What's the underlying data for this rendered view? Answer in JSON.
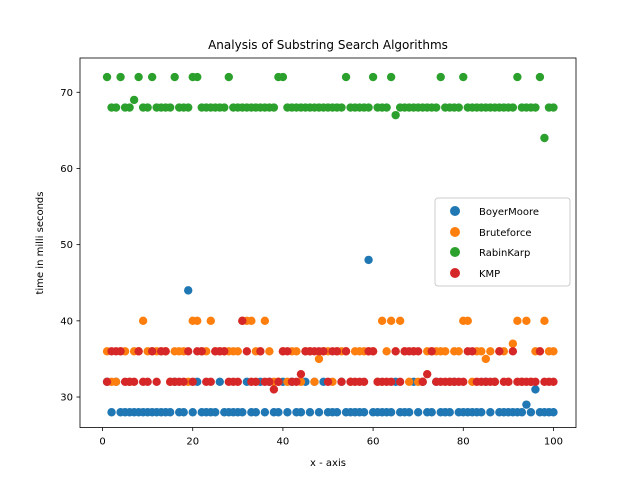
{
  "chart_data": {
    "type": "scatter",
    "title": "Analysis of Substring Search Algorithms",
    "xlabel": "x - axis",
    "ylabel": "time in milli seconds",
    "xlim": [
      -5,
      105
    ],
    "ylim": [
      26,
      74.5
    ],
    "xticks": [
      0,
      20,
      40,
      60,
      80,
      100
    ],
    "yticks": [
      30,
      40,
      50,
      60,
      70
    ],
    "grid": false,
    "legend_position": "center-right",
    "series": [
      {
        "name": "BoyerMoore",
        "color": "#1f77b4",
        "x": [
          1,
          2,
          3,
          4,
          5,
          6,
          7,
          8,
          9,
          10,
          11,
          12,
          13,
          14,
          15,
          16,
          17,
          18,
          19,
          20,
          21,
          22,
          23,
          24,
          25,
          26,
          27,
          28,
          29,
          30,
          31,
          32,
          33,
          34,
          35,
          36,
          37,
          38,
          39,
          40,
          41,
          42,
          43,
          44,
          45,
          46,
          47,
          48,
          49,
          50,
          51,
          52,
          53,
          54,
          55,
          56,
          57,
          58,
          59,
          60,
          61,
          62,
          63,
          64,
          65,
          66,
          67,
          68,
          69,
          70,
          71,
          72,
          73,
          74,
          75,
          76,
          77,
          78,
          79,
          80,
          81,
          82,
          83,
          84,
          85,
          86,
          87,
          88,
          89,
          90,
          91,
          92,
          93,
          94,
          95,
          96,
          97,
          98,
          99,
          100
        ],
        "y": [
          32,
          28,
          32,
          28,
          28,
          28,
          28,
          28,
          28,
          28,
          28,
          28,
          28,
          28,
          28,
          32,
          28,
          28,
          44,
          28,
          32,
          28,
          28,
          28,
          28,
          32,
          28,
          28,
          28,
          28,
          28,
          32,
          28,
          28,
          32,
          28,
          32,
          28,
          28,
          32,
          28,
          32,
          28,
          28,
          32,
          28,
          32,
          28,
          32,
          28,
          28,
          28,
          32,
          28,
          28,
          28,
          28,
          28,
          48,
          28,
          28,
          28,
          28,
          28,
          32,
          28,
          28,
          28,
          32,
          28,
          32,
          28,
          28,
          32,
          28,
          28,
          28,
          32,
          28,
          28,
          28,
          28,
          28,
          28,
          32,
          28,
          32,
          28,
          28,
          28,
          28,
          28,
          28,
          29,
          28,
          31,
          28,
          28,
          28,
          28
        ]
      },
      {
        "name": "Bruteforce",
        "color": "#ff7f0e",
        "x": [
          1,
          2,
          3,
          4,
          5,
          6,
          7,
          8,
          9,
          10,
          11,
          12,
          13,
          14,
          15,
          16,
          17,
          18,
          19,
          20,
          21,
          22,
          23,
          24,
          25,
          26,
          27,
          28,
          29,
          30,
          31,
          32,
          33,
          34,
          35,
          36,
          37,
          38,
          39,
          40,
          41,
          42,
          43,
          44,
          45,
          46,
          47,
          48,
          49,
          50,
          51,
          52,
          53,
          54,
          55,
          56,
          57,
          58,
          59,
          60,
          61,
          62,
          63,
          64,
          65,
          66,
          67,
          68,
          69,
          70,
          71,
          72,
          73,
          74,
          75,
          76,
          77,
          78,
          79,
          80,
          81,
          82,
          83,
          84,
          85,
          86,
          87,
          88,
          89,
          90,
          91,
          92,
          93,
          94,
          95,
          96,
          97,
          98,
          99,
          100
        ],
        "y": [
          36,
          32,
          32,
          36,
          36,
          32,
          36,
          36,
          40,
          36,
          36,
          36,
          36,
          36,
          32,
          36,
          36,
          36,
          32,
          40,
          40,
          36,
          36,
          40,
          36,
          36,
          36,
          36,
          36,
          36,
          40,
          40,
          40,
          36,
          36,
          40,
          36,
          32,
          32,
          36,
          32,
          36,
          36,
          32,
          36,
          36,
          32,
          35,
          36,
          36,
          32,
          36,
          36,
          36,
          32,
          36,
          36,
          36,
          36,
          36,
          32,
          40,
          36,
          40,
          36,
          40,
          36,
          32,
          36,
          32,
          32,
          36,
          36,
          36,
          36,
          36,
          32,
          36,
          36,
          40,
          40,
          32,
          36,
          36,
          35,
          36,
          32,
          36,
          36,
          32,
          37,
          40,
          32,
          40,
          32,
          36,
          36,
          40,
          36,
          36
        ]
      },
      {
        "name": "RabinKarp",
        "color": "#2ca02c",
        "x": [
          1,
          2,
          3,
          4,
          5,
          6,
          7,
          8,
          9,
          10,
          11,
          12,
          13,
          14,
          15,
          16,
          17,
          18,
          19,
          20,
          21,
          22,
          23,
          24,
          25,
          26,
          27,
          28,
          29,
          30,
          31,
          32,
          33,
          34,
          35,
          36,
          37,
          38,
          39,
          40,
          41,
          42,
          43,
          44,
          45,
          46,
          47,
          48,
          49,
          50,
          51,
          52,
          53,
          54,
          55,
          56,
          57,
          58,
          59,
          60,
          61,
          62,
          63,
          64,
          65,
          66,
          67,
          68,
          69,
          70,
          71,
          72,
          73,
          74,
          75,
          76,
          77,
          78,
          79,
          80,
          81,
          82,
          83,
          84,
          85,
          86,
          87,
          88,
          89,
          90,
          91,
          92,
          93,
          94,
          95,
          96,
          97,
          98,
          99,
          100
        ],
        "y": [
          72,
          68,
          68,
          72,
          68,
          68,
          69,
          72,
          68,
          68,
          72,
          68,
          68,
          68,
          68,
          72,
          68,
          68,
          68,
          72,
          72,
          68,
          68,
          68,
          68,
          68,
          68,
          72,
          68,
          68,
          68,
          68,
          68,
          68,
          68,
          68,
          68,
          68,
          72,
          72,
          68,
          68,
          68,
          68,
          68,
          68,
          68,
          68,
          68,
          68,
          68,
          68,
          68,
          72,
          68,
          68,
          68,
          68,
          68,
          72,
          68,
          68,
          68,
          72,
          67,
          68,
          68,
          68,
          68,
          68,
          68,
          68,
          68,
          68,
          72,
          68,
          68,
          68,
          68,
          72,
          68,
          68,
          68,
          68,
          68,
          68,
          68,
          68,
          68,
          68,
          68,
          72,
          68,
          68,
          68,
          68,
          72,
          64,
          68,
          68
        ]
      },
      {
        "name": "KMP",
        "color": "#d62728",
        "x": [
          1,
          2,
          3,
          4,
          5,
          6,
          7,
          8,
          9,
          10,
          11,
          12,
          13,
          14,
          15,
          16,
          17,
          18,
          19,
          20,
          21,
          22,
          23,
          24,
          25,
          26,
          27,
          28,
          29,
          30,
          31,
          32,
          33,
          34,
          35,
          36,
          37,
          38,
          39,
          40,
          41,
          42,
          43,
          44,
          45,
          46,
          47,
          48,
          49,
          50,
          51,
          52,
          53,
          54,
          55,
          56,
          57,
          58,
          59,
          60,
          61,
          62,
          63,
          64,
          65,
          66,
          67,
          68,
          69,
          70,
          71,
          72,
          73,
          74,
          75,
          76,
          77,
          78,
          79,
          80,
          81,
          82,
          83,
          84,
          85,
          86,
          87,
          88,
          89,
          90,
          91,
          92,
          93,
          94,
          95,
          96,
          97,
          98,
          99,
          100
        ],
        "y": [
          32,
          36,
          36,
          36,
          32,
          32,
          32,
          36,
          32,
          32,
          36,
          32,
          36,
          36,
          32,
          32,
          32,
          32,
          36,
          32,
          36,
          36,
          32,
          32,
          36,
          36,
          36,
          32,
          32,
          32,
          40,
          36,
          32,
          32,
          36,
          32,
          32,
          31,
          32,
          36,
          36,
          32,
          32,
          33,
          36,
          36,
          36,
          36,
          36,
          32,
          36,
          36,
          32,
          36,
          32,
          32,
          32,
          32,
          36,
          36,
          32,
          32,
          32,
          32,
          36,
          32,
          36,
          36,
          36,
          36,
          32,
          33,
          36,
          32,
          32,
          32,
          32,
          32,
          32,
          32,
          36,
          36,
          32,
          32,
          32,
          32,
          32,
          36,
          32,
          32,
          36,
          32,
          32,
          32,
          32,
          32,
          36,
          32,
          32,
          32
        ]
      }
    ]
  }
}
